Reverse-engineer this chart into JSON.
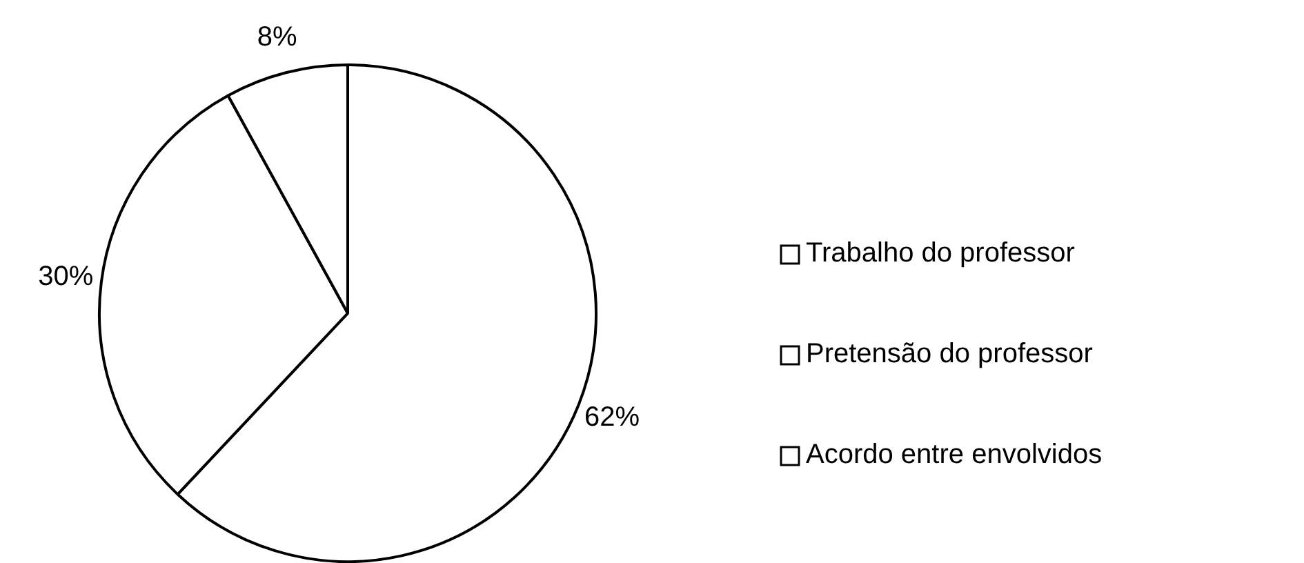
{
  "chart_data": {
    "type": "pie",
    "categories": [
      "Trabalho do professor",
      "Pretensão do professor",
      "Acordo entre envolvidos"
    ],
    "values": [
      62,
      30,
      8
    ],
    "colors": [
      "#ffffff",
      "#ffffff",
      "#ffffff"
    ],
    "value_labels": [
      "62%",
      "30%",
      "8%"
    ],
    "legend": "right"
  }
}
